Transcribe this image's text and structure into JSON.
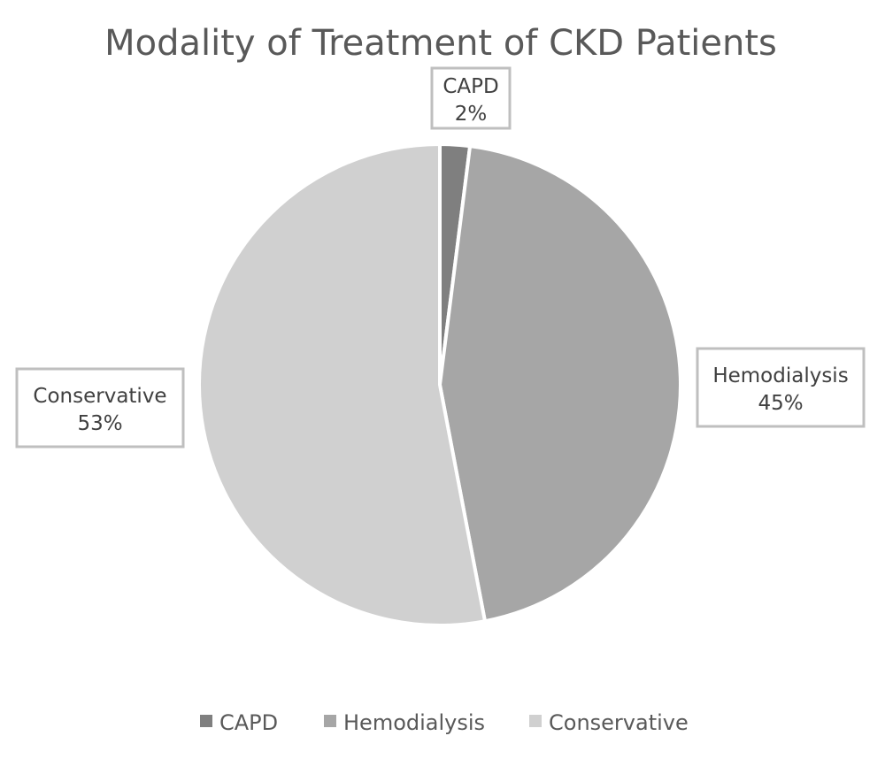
{
  "chart_data": {
    "type": "pie",
    "title": "Modality of Treatment of CKD Patients",
    "categories": [
      "CAPD",
      "Hemodialysis",
      "Conservative"
    ],
    "values": [
      2,
      45,
      53
    ],
    "value_labels": [
      "2%",
      "45%",
      "53%"
    ],
    "colors": [
      "#7f7f7f",
      "#a6a6a6",
      "#d0d0d0"
    ],
    "legend_position": "bottom",
    "data_labels": "category and percentage, boxed callouts"
  }
}
